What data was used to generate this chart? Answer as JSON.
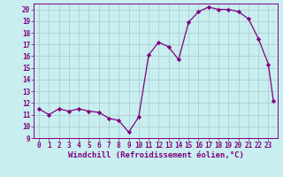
{
  "x": [
    0,
    1,
    2,
    3,
    4,
    5,
    6,
    7,
    8,
    9,
    10,
    11,
    12,
    13,
    14,
    15,
    16,
    17,
    18,
    19,
    20,
    21,
    22,
    23,
    23.5
  ],
  "y": [
    11.5,
    11.0,
    11.5,
    11.3,
    11.5,
    11.3,
    11.2,
    10.7,
    10.5,
    9.5,
    10.8,
    16.1,
    17.2,
    16.8,
    15.7,
    18.9,
    19.8,
    20.2,
    20.0,
    20.0,
    19.8,
    19.2,
    17.5,
    15.3,
    12.2
  ],
  "line_color": "#800080",
  "marker": "D",
  "markersize": 2.2,
  "markeredgewidth": 0.5,
  "linewidth": 0.9,
  "xlabel": "Windchill (Refroidissement éolien,°C)",
  "xlim": [
    -0.5,
    23.9
  ],
  "ylim": [
    9,
    20.5
  ],
  "yticks": [
    9,
    10,
    11,
    12,
    13,
    14,
    15,
    16,
    17,
    18,
    19,
    20
  ],
  "xticks": [
    0,
    1,
    2,
    3,
    4,
    5,
    6,
    7,
    8,
    9,
    10,
    11,
    12,
    13,
    14,
    15,
    16,
    17,
    18,
    19,
    20,
    21,
    22,
    23
  ],
  "background_color": "#c8eef0",
  "grid_color": "#a8c8cc",
  "spine_color": "#800080",
  "tick_color": "#800080",
  "label_color": "#800080",
  "xlabel_fontsize": 6.5,
  "tick_fontsize": 5.5
}
